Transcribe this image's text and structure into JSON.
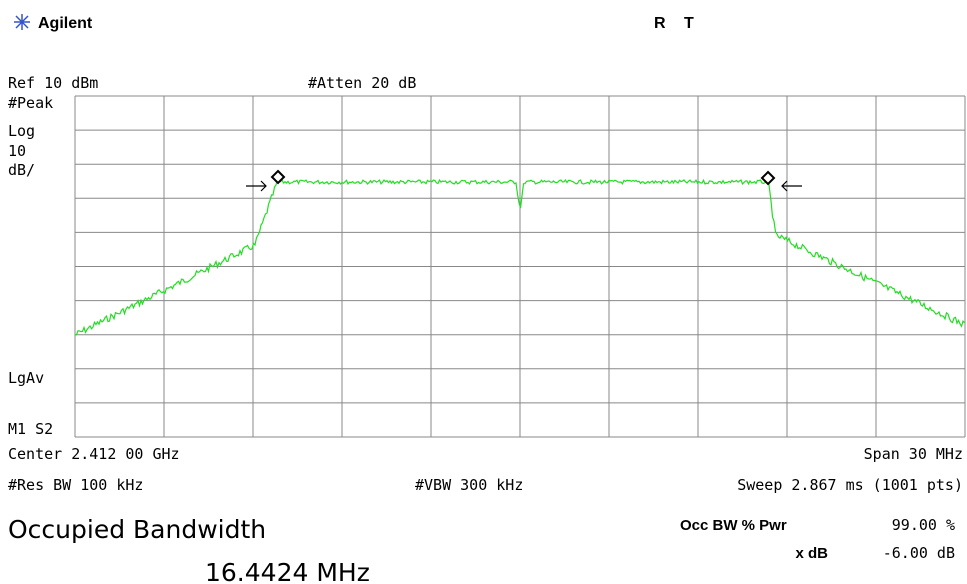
{
  "header": {
    "brand": "Agilent",
    "status": [
      "R",
      "T"
    ]
  },
  "top_labels": {
    "ref": "Ref 10 dBm",
    "atten": "#Atten 20 dB"
  },
  "left_labels": [
    "#Peak",
    "Log",
    "10",
    "dB/",
    "LgAv",
    "M1 S2"
  ],
  "bottom_labels": {
    "center": "Center 2.412 00 GHz",
    "span": "Span 30 MHz",
    "res_bw": "#Res BW 100 kHz",
    "vbw": "#VBW 300 kHz",
    "sweep": "Sweep 2.867 ms (1001 pts)"
  },
  "result": {
    "title": "Occupied Bandwidth",
    "value": "16.4424 MHz",
    "params": [
      {
        "label": "Occ BW % Pwr",
        "value": "99.00 %"
      },
      {
        "label": "x dB",
        "value": "-6.00 dB"
      }
    ]
  }
}
